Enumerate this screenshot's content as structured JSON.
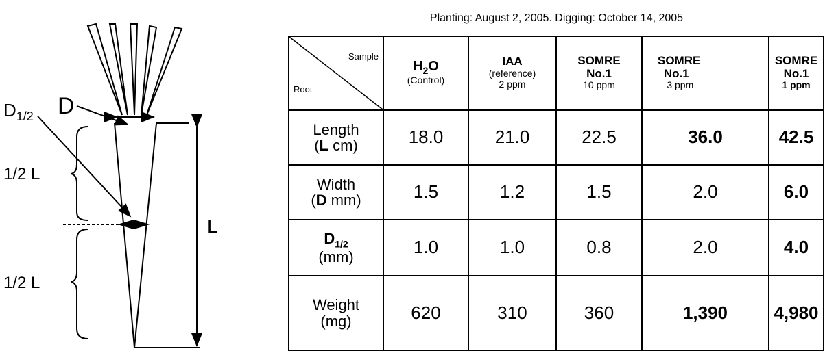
{
  "caption": "Planting: August 2, 2005. Digging: October 14, 2005",
  "diagram": {
    "d_half": [
      "D",
      "1/2"
    ],
    "d": "D",
    "half_l_top": "1/2 L",
    "half_l_bottom": "1/2 L",
    "l": "L"
  },
  "table": {
    "corner": {
      "top": "Sample",
      "bottom": "Root"
    },
    "columns": [
      {
        "name": [
          "H",
          "2",
          "O"
        ],
        "note": "(Control)"
      },
      {
        "name": "IAA",
        "note": "(reference)",
        "dose": "2 ppm"
      },
      {
        "name": "SOMRE",
        "number": "No.1",
        "dose": "10 ppm"
      },
      {
        "name": "SOMRE",
        "number": "No.1",
        "dose": "3 ppm"
      },
      {
        "name": "SOMRE",
        "number": "No.1",
        "dose": "1 ppm"
      }
    ],
    "rows": [
      {
        "label": [
          "Length",
          "(",
          "L",
          " cm)"
        ],
        "cells": [
          "18.0",
          "21.0",
          "22.5",
          "36.0",
          "42.5"
        ],
        "bold": [
          false,
          false,
          false,
          true,
          true
        ]
      },
      {
        "label": [
          "Width",
          "(",
          "D",
          " mm)"
        ],
        "cells": [
          "1.5",
          "1.2",
          "1.5",
          "2.0",
          "6.0"
        ],
        "bold": [
          false,
          false,
          false,
          false,
          true
        ]
      },
      {
        "label": [
          "D",
          "1/2",
          "(mm)"
        ],
        "cells": [
          "1.0",
          "1.0",
          "0.8",
          "2.0",
          "4.0"
        ],
        "bold": [
          false,
          false,
          false,
          false,
          true
        ]
      },
      {
        "label": [
          "Weight",
          "(mg)"
        ],
        "cells": [
          "620",
          "310",
          "360",
          "1,390",
          "4,980"
        ],
        "bold": [
          false,
          false,
          false,
          true,
          true
        ]
      }
    ]
  }
}
